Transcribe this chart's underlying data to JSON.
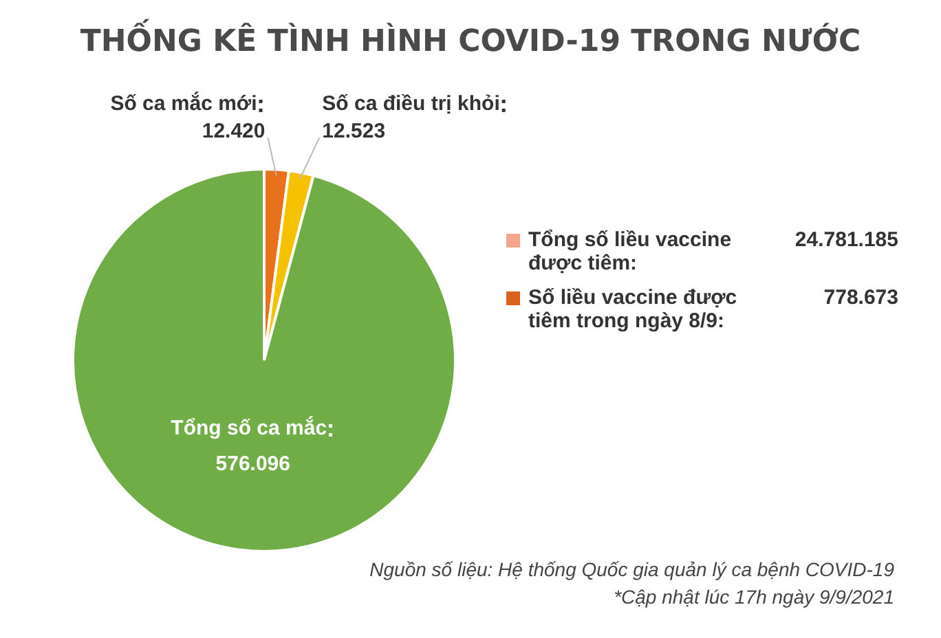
{
  "chart_data": {
    "type": "pie",
    "title": "THỐNG KÊ TÌNH HÌNH COVID-19 TRONG NƯỚC",
    "categories": [
      "Số ca mắc mới",
      "Số ca điều trị khỏi",
      "Tổng số ca mắc"
    ],
    "values": [
      12420,
      12523,
      576096
    ],
    "value_labels": [
      "12.420",
      "12.523",
      "576.096"
    ],
    "colors": [
      "#e8721c",
      "#f6c200",
      "#70ad47"
    ],
    "legend": false,
    "annotations": [
      "Tổng số liều vaccine được tiêm:",
      "24.781.185",
      "Số liều vaccine được tiêm trong ngày 8/9:",
      "778.673",
      "Nguồn số liệu: Hệ thống Quốc gia quản lý ca bệnh COVID-19",
      "*Cập nhật lúc 17h ngày 9/9/2021"
    ]
  }
}
